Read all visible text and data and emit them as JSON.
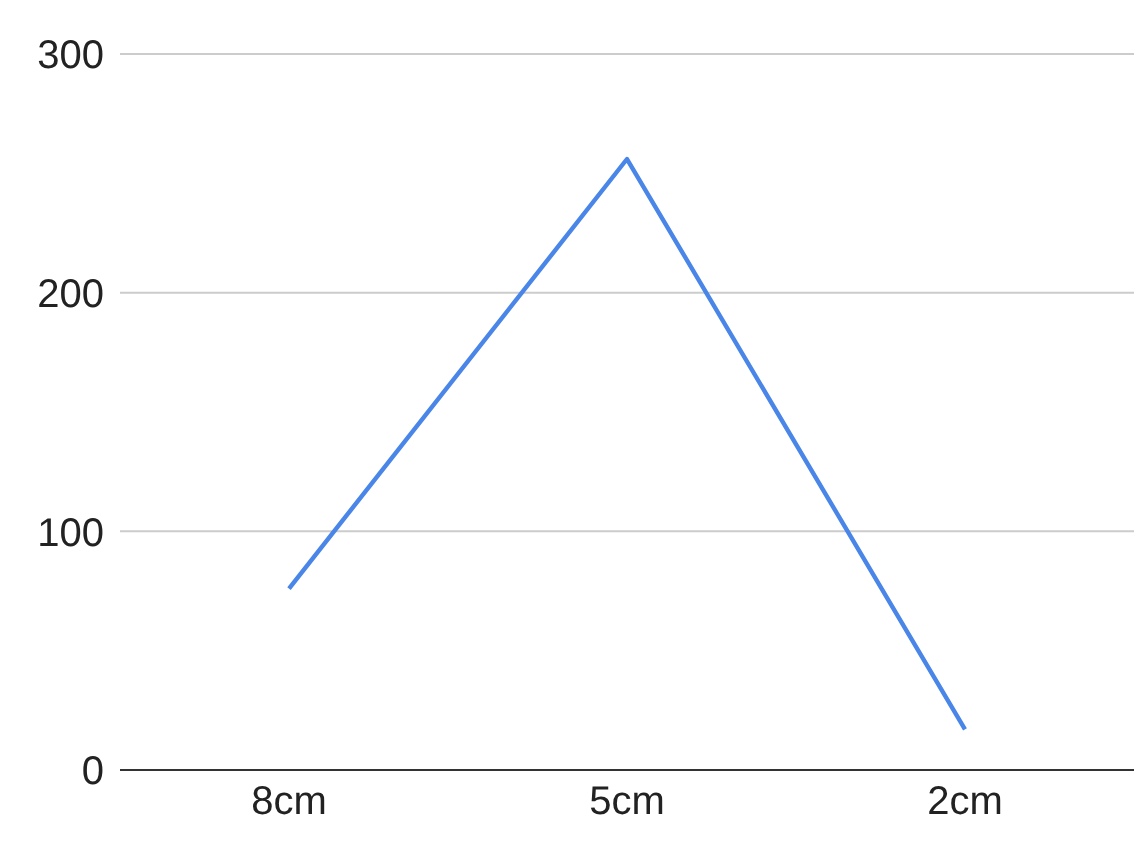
{
  "chart_data": {
    "type": "line",
    "categories": [
      "8cm",
      "5cm",
      "2cm"
    ],
    "series": [
      {
        "color": "#4a86e8",
        "values": [
          76,
          256,
          17
        ]
      }
    ],
    "ylim": [
      0,
      300
    ],
    "yticks": [
      0,
      100,
      200,
      300
    ],
    "grid": "y",
    "legend": false,
    "marker": "none",
    "line_style": "solid"
  }
}
